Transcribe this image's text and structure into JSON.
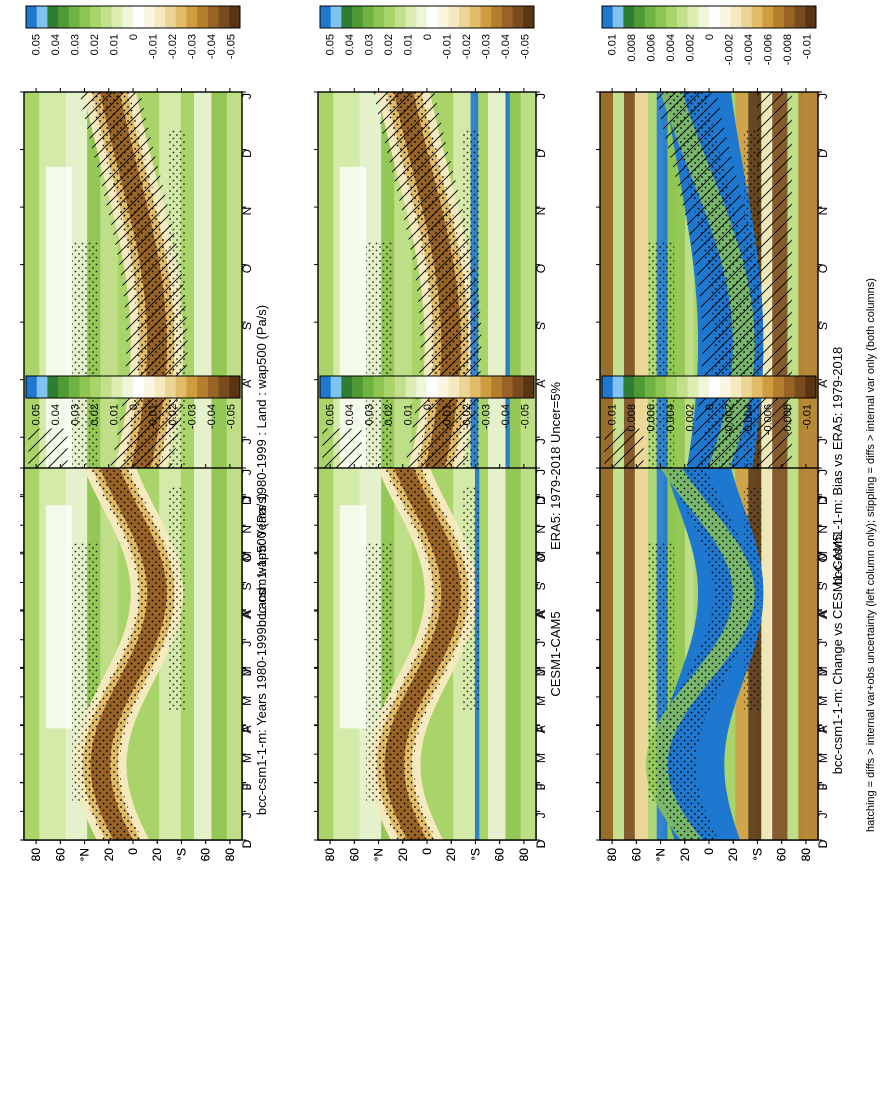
{
  "footnote": "hatching = diffs > internal var+obs uncertainty (left column only); stippling = diffs > internal var only (both columns)",
  "colors": {
    "scale": [
      "#1f78d0",
      "#7fc3f0",
      "#2e7d32",
      "#4f9a35",
      "#6fb340",
      "#8fc652",
      "#a9d46a",
      "#c2e08c",
      "#dbedb3",
      "#eef6dc",
      "#ffffff",
      "#fbf6e3",
      "#f5e9c0",
      "#ecd495",
      "#e0bb68",
      "#cf9d3f",
      "#b57e2f",
      "#976326",
      "#7a4b1e",
      "#5a3514"
    ],
    "low": "#ffffff",
    "mid_green": "#a9d46a",
    "band_brown": "#8a5a26",
    "negative_blue": "#1f78d0"
  },
  "chart_data": [
    {
      "type": "heatmap",
      "panel": "row1-left",
      "title": "bcc-csm1-1-m: Years 1980-1999 : Land : wap500 (Pa/s)",
      "x": [
        "D",
        "J",
        "F",
        "M",
        "A",
        "M",
        "J",
        "J",
        "A",
        "S",
        "O",
        "N",
        "D",
        "J"
      ],
      "y_ticks": [
        "80",
        "60",
        "°N",
        "20",
        "0",
        "20",
        "°S",
        "60",
        "80"
      ],
      "legend_ticks": [
        "0.05",
        "0.04",
        "0.03",
        "0.02",
        "0.01",
        "0",
        "-0.01",
        "-0.02",
        "-0.03",
        "-0.04",
        "-0.05"
      ],
      "range": [
        -0.05,
        0.05
      ],
      "hatching": true,
      "stippling": true
    },
    {
      "type": "heatmap",
      "panel": "row1-right",
      "title": "bcc-csm1-1-m: Years 1980-1999 : Land : wap500 (Pa/s)",
      "x": [
        "D",
        "J",
        "F",
        "M",
        "A",
        "M",
        "J",
        "J",
        "A",
        "S",
        "O",
        "N",
        "D",
        "J"
      ],
      "y_ticks": [
        "80",
        "60",
        "°N",
        "20",
        "0",
        "20",
        "°S",
        "60",
        "80"
      ],
      "legend_ticks": [
        "0.05",
        "0.04",
        "0.03",
        "0.02",
        "0.01",
        "0",
        "-0.01",
        "-0.02",
        "-0.03",
        "-0.04",
        "-0.05"
      ],
      "range": [
        -0.05,
        0.05
      ],
      "hatching": false,
      "stippling": true
    },
    {
      "type": "heatmap",
      "panel": "row2-left",
      "title": "ERA5: 1979-2018 Uncer=5%",
      "x": [
        "D",
        "J",
        "F",
        "M",
        "A",
        "M",
        "J",
        "J",
        "A",
        "S",
        "O",
        "N",
        "D",
        "J"
      ],
      "y_ticks": [
        "80",
        "60",
        "°N",
        "20",
        "0",
        "20",
        "°S",
        "60",
        "80"
      ],
      "legend_ticks": [
        "0.05",
        "0.04",
        "0.03",
        "0.02",
        "0.01",
        "0",
        "-0.01",
        "-0.02",
        "-0.03",
        "-0.04",
        "-0.05"
      ],
      "range": [
        -0.05,
        0.05
      ],
      "hatching": true,
      "stippling": true
    },
    {
      "type": "heatmap",
      "panel": "row2-right",
      "title": "CESM1-CAM5",
      "x": [
        "D",
        "J",
        "F",
        "M",
        "A",
        "M",
        "J",
        "J",
        "A",
        "S",
        "O",
        "N",
        "D",
        "J"
      ],
      "y_ticks": [
        "80",
        "60",
        "°N",
        "20",
        "0",
        "20",
        "°S",
        "60",
        "80"
      ],
      "legend_ticks": [
        "0.05",
        "0.04",
        "0.03",
        "0.02",
        "0.01",
        "0",
        "-0.01",
        "-0.02",
        "-0.03",
        "-0.04",
        "-0.05"
      ],
      "range": [
        -0.05,
        0.05
      ],
      "hatching": false,
      "stippling": true
    },
    {
      "type": "heatmap",
      "panel": "row3-left",
      "title": "bcc-csm1-1-m: Bias vs ERA5: 1979-2018",
      "x": [
        "D",
        "J",
        "F",
        "M",
        "A",
        "M",
        "J",
        "J",
        "A",
        "S",
        "O",
        "N",
        "D",
        "J"
      ],
      "y_ticks": [
        "80",
        "60",
        "°N",
        "20",
        "0",
        "20",
        "°S",
        "60",
        "80"
      ],
      "legend_ticks": [
        "0.01",
        "0.008",
        "0.006",
        "0.004",
        "0.002",
        "0",
        "-0.002",
        "-0.004",
        "-0.006",
        "-0.008",
        "-0.01"
      ],
      "range": [
        -0.01,
        0.01
      ],
      "hatching": true,
      "stippling": true
    },
    {
      "type": "heatmap",
      "panel": "row3-right",
      "title": "bcc-csm1-1-m: Change vs CESM1-CAM5",
      "x": [
        "D",
        "J",
        "F",
        "M",
        "A",
        "M",
        "J",
        "J",
        "A",
        "S",
        "O",
        "N",
        "D",
        "J"
      ],
      "y_ticks": [
        "80",
        "60",
        "°N",
        "20",
        "0",
        "20",
        "°S",
        "60",
        "80"
      ],
      "legend_ticks": [
        "0.01",
        "0.008",
        "0.006",
        "0.004",
        "0.002",
        "0",
        "-0.002",
        "-0.004",
        "-0.006",
        "-0.008",
        "-0.01"
      ],
      "range": [
        -0.01,
        0.01
      ],
      "hatching": false,
      "stippling": true
    }
  ]
}
